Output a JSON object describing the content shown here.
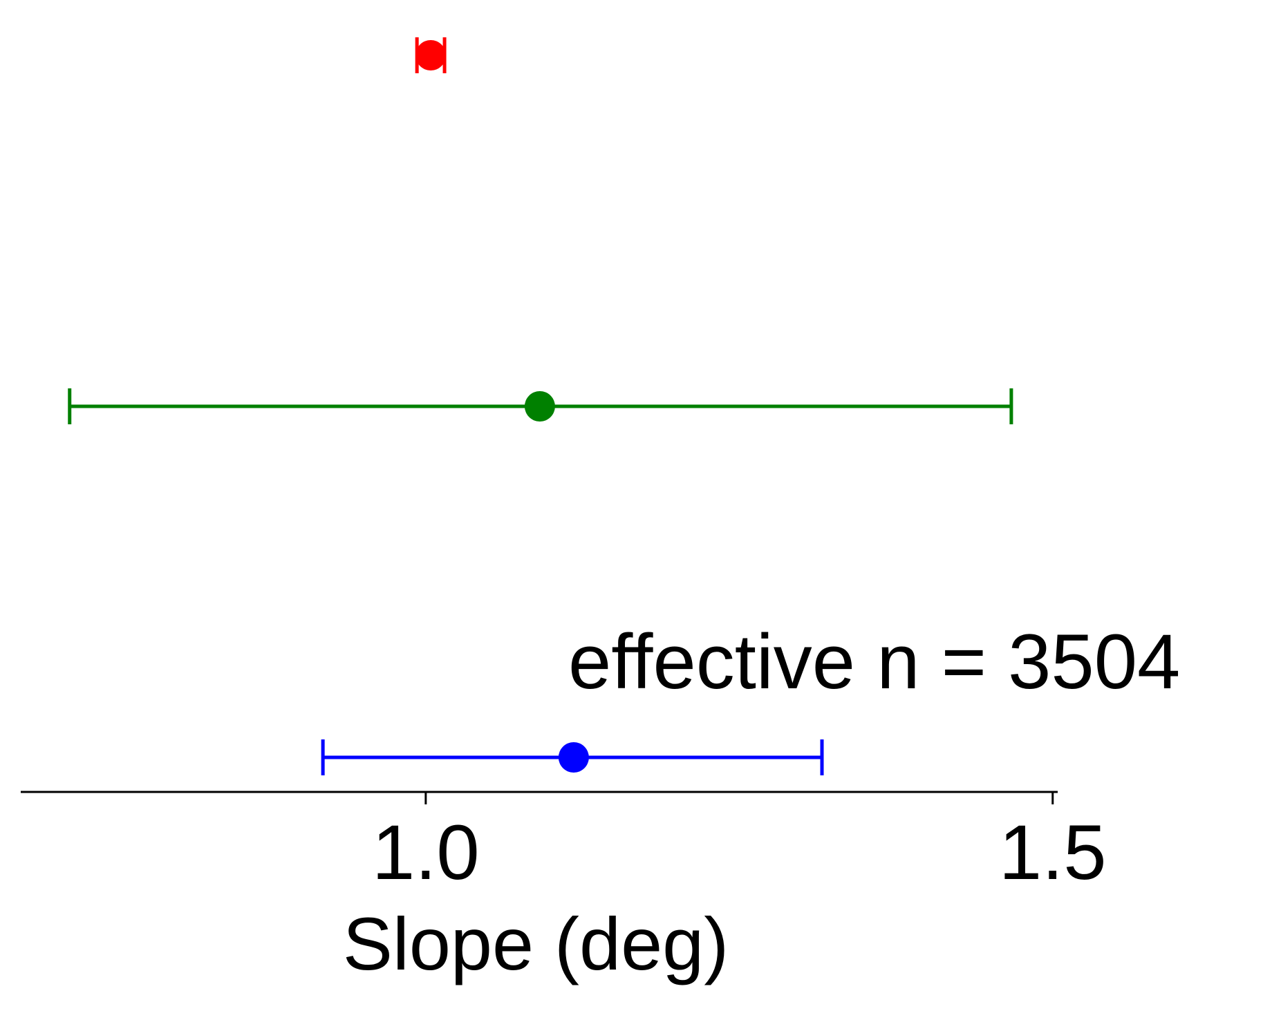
{
  "chart_data": {
    "type": "scatter",
    "title": "",
    "xlabel": "Slope (deg)",
    "ylabel": "",
    "xlim": [
      0.677,
      1.504
    ],
    "xticks": [
      {
        "value": 1.0,
        "label": "1.0"
      },
      {
        "value": 1.5,
        "label": "1.5"
      }
    ],
    "grid": false,
    "legend": "none",
    "points": [
      {
        "x": 1.004,
        "low": 0.993,
        "high": 1.015,
        "color": "#ff0000"
      },
      {
        "x": 1.091,
        "low": 0.716,
        "high": 1.467,
        "color": "#008000"
      },
      {
        "x": 1.118,
        "low": 0.918,
        "high": 1.316,
        "color": "#0000ff"
      }
    ],
    "annotations": [
      {
        "text": "effective n = 3504"
      }
    ]
  }
}
